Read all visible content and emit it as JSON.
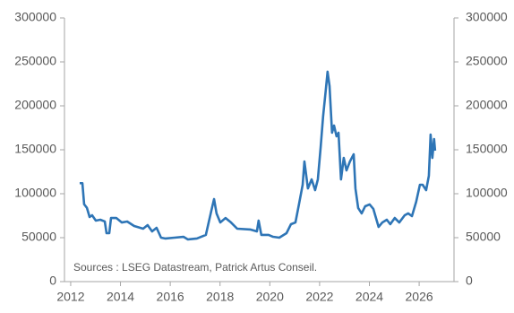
{
  "chart_data": {
    "type": "line",
    "annotation": "Sources : LSEG Datastream, Patrick Artus Conseil.",
    "x": [
      2012.36,
      2012.47,
      2012.54,
      2012.65,
      2012.76,
      2012.86,
      2013.01,
      2013.19,
      2013.37,
      2013.44,
      2013.55,
      2013.62,
      2013.83,
      2014.05,
      2014.27,
      2014.55,
      2014.91,
      2015.09,
      2015.27,
      2015.45,
      2015.63,
      2015.81,
      2016.17,
      2016.53,
      2016.71,
      2017.07,
      2017.43,
      2017.65,
      2017.76,
      2017.86,
      2018.01,
      2018.22,
      2018.44,
      2018.69,
      2019.23,
      2019.48,
      2019.55,
      2019.66,
      2019.95,
      2020.13,
      2020.38,
      2020.67,
      2020.85,
      2021.03,
      2021.17,
      2021.32,
      2021.39,
      2021.53,
      2021.68,
      2021.82,
      2021.93,
      2022.04,
      2022.14,
      2022.25,
      2022.32,
      2022.4,
      2022.5,
      2022.58,
      2022.68,
      2022.76,
      2022.86,
      2022.97,
      2023.08,
      2023.22,
      2023.37,
      2023.44,
      2023.55,
      2023.69,
      2023.83,
      2024.01,
      2024.16,
      2024.37,
      2024.52,
      2024.7,
      2024.84,
      2025.02,
      2025.2,
      2025.42,
      2025.56,
      2025.71,
      2025.88,
      2026.03,
      2026.14,
      2026.28,
      2026.39,
      2026.46,
      2026.53,
      2026.6,
      2026.64
    ],
    "series": [
      {
        "color": "#2e75b6",
        "values": [
          112000,
          112000,
          88000,
          84000,
          73500,
          75500,
          69400,
          70400,
          68400,
          55100,
          55100,
          72400,
          72400,
          67300,
          68400,
          63300,
          60200,
          64300,
          57100,
          61200,
          50000,
          49000,
          50000,
          51000,
          48000,
          49000,
          53100,
          80600,
          93900,
          77600,
          67300,
          72400,
          67300,
          60200,
          59200,
          57100,
          69400,
          53100,
          53100,
          51000,
          50000,
          55100,
          65300,
          67300,
          87800,
          110200,
          136700,
          106000,
          116300,
          104100,
          116300,
          152000,
          187800,
          218400,
          238800,
          222400,
          169400,
          177600,
          165300,
          169400,
          116300,
          140800,
          126500,
          136700,
          144900,
          106000,
          83700,
          77600,
          85700,
          87800,
          82700,
          62200,
          67300,
          70400,
          65300,
          72400,
          67300,
          75500,
          77600,
          74500,
          90800,
          110200,
          110200,
          104100,
          120400,
          167300,
          140800,
          162200,
          149000
        ]
      }
    ],
    "xlim": [
      2011.75,
      2027.4
    ],
    "xticks": [
      2012,
      2014,
      2016,
      2018,
      2020,
      2022,
      2024,
      2026
    ],
    "ylim": [
      0,
      300000
    ],
    "yticks": [
      0,
      50000,
      100000,
      150000,
      200000,
      250000,
      300000
    ],
    "y2lim": [
      0,
      300000
    ],
    "y2ticks": [
      0,
      50000,
      100000,
      150000,
      200000,
      250000,
      300000
    ]
  }
}
